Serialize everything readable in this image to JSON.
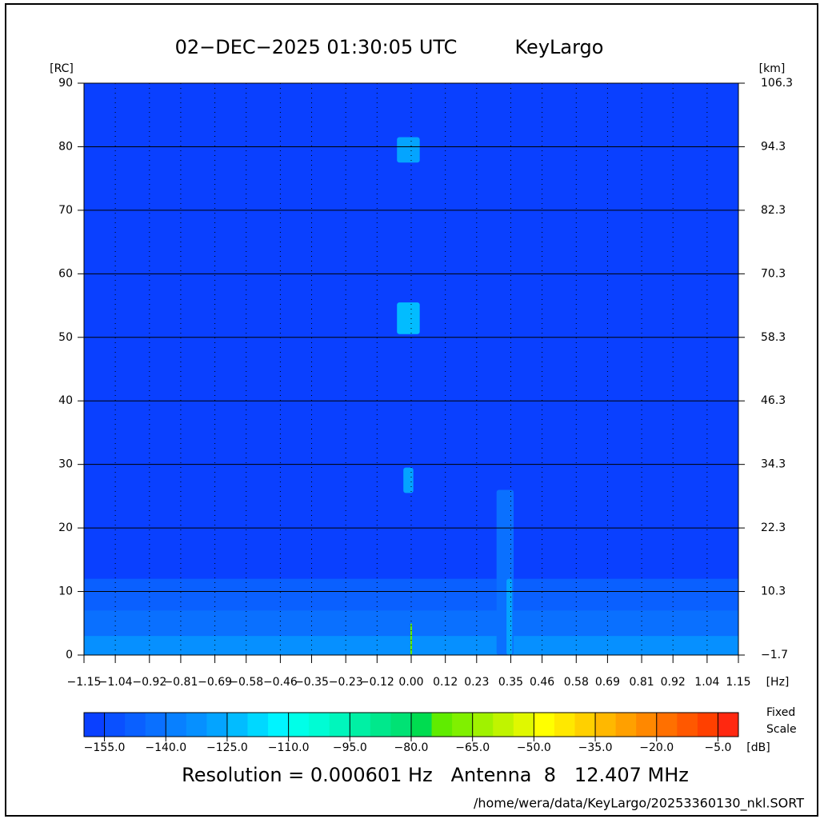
{
  "chart_data": {
    "type": "heatmap",
    "title": "02−DEC−2025 01:30:05 UTC",
    "subtitle": "KeyLargo",
    "y_label": "[RC]",
    "y2_label": "[km]",
    "x_label": "[Hz]",
    "xlim": [
      -1.15,
      1.15
    ],
    "xticks": [
      {
        "value": -1.15,
        "label": "−1.15"
      },
      {
        "value": -1.04,
        "label": "−1.04"
      },
      {
        "value": -0.92,
        "label": "−0.92"
      },
      {
        "value": -0.81,
        "label": "−0.81"
      },
      {
        "value": -0.69,
        "label": "−0.69"
      },
      {
        "value": -0.58,
        "label": "−0.58"
      },
      {
        "value": -0.46,
        "label": "−0.46"
      },
      {
        "value": -0.35,
        "label": "−0.35"
      },
      {
        "value": -0.23,
        "label": "−0.23"
      },
      {
        "value": -0.12,
        "label": "−0.12"
      },
      {
        "value": 0,
        "label": "0.00"
      },
      0.12,
      0.23,
      0.35,
      0.46,
      0.58,
      0.69,
      0.81,
      0.92,
      1.04,
      1.15
    ],
    "ylim": [
      0,
      90
    ],
    "yticks": [
      0,
      10,
      20,
      30,
      40,
      50,
      60,
      70,
      80,
      90
    ],
    "y2lim": [
      -1.7,
      106.3
    ],
    "y2ticks": [
      {
        "value": -1.7,
        "label": "−1.7"
      },
      10.3,
      22.3,
      34.3,
      46.3,
      58.3,
      70.3,
      82.3,
      94.3,
      106.3
    ],
    "grid": true,
    "background": -157,
    "spots": [
      {
        "x": 0,
        "y": 6,
        "width": 2.3,
        "height": 12,
        "value": -147
      },
      {
        "x": 0,
        "y": 3.5,
        "width": 2.3,
        "height": 7,
        "value": -141
      },
      {
        "x": 0,
        "y": 1.5,
        "width": 2.3,
        "height": 3,
        "value": -133
      },
      {
        "x": -0.01,
        "y": 79.5,
        "width": 0.08,
        "height": 4,
        "value": -127
      },
      {
        "x": -0.01,
        "y": 53,
        "width": 0.08,
        "height": 5,
        "value": -122
      },
      {
        "x": -0.01,
        "y": 27.5,
        "width": 0.035,
        "height": 4,
        "value": -127
      },
      {
        "x": 0.33,
        "y": 13,
        "width": 0.06,
        "height": 26,
        "value": -143
      },
      {
        "x": 0.345,
        "y": 6,
        "width": 0.02,
        "height": 12,
        "value": -130
      },
      {
        "x": 0.0,
        "y": 2.5,
        "width": 0.006,
        "height": 5,
        "value": -72
      }
    ],
    "colorbar": {
      "lim": [
        -160,
        0
      ],
      "unit": "[dB]",
      "note": [
        "Fixed",
        "Scale"
      ],
      "ticks": [
        {
          "value": -155,
          "label": "−155.0"
        },
        {
          "value": -140,
          "label": "−140.0"
        },
        {
          "value": -125,
          "label": "−125.0"
        },
        {
          "value": -110,
          "label": "−110.0"
        },
        {
          "value": -95,
          "label": "−95.0"
        },
        {
          "value": -80,
          "label": "−80.0"
        },
        {
          "value": -65,
          "label": "−65.0"
        },
        {
          "value": -50,
          "label": "−50.0"
        },
        {
          "value": -35,
          "label": "−35.0"
        },
        {
          "value": -20,
          "label": "−20.0"
        },
        {
          "value": -5,
          "label": "−5.0"
        }
      ],
      "colors": [
        "#0a40ff",
        "#0a50ff",
        "#0a60ff",
        "#0a70ff",
        "#0880ff",
        "#0690ff",
        "#04a4ff",
        "#02bcff",
        "#00d8ff",
        "#00f4ff",
        "#00ffe8",
        "#00fcd4",
        "#00f6bc",
        "#00f0a4",
        "#00e88c",
        "#00e274",
        "#00dc50",
        "#60ec00",
        "#80f000",
        "#a0f200",
        "#c0f400",
        "#e0f800",
        "#ffff00",
        "#ffe800",
        "#ffd000",
        "#ffb800",
        "#ffa000",
        "#ff8800",
        "#ff7000",
        "#ff5800",
        "#ff4000",
        "#ff2810"
      ]
    },
    "footer": "Resolution = 0.000601 Hz   Antenna  8   12.407 MHz",
    "file": "/home/wera/data/KeyLargo/20253360130_nkl.SORT"
  }
}
